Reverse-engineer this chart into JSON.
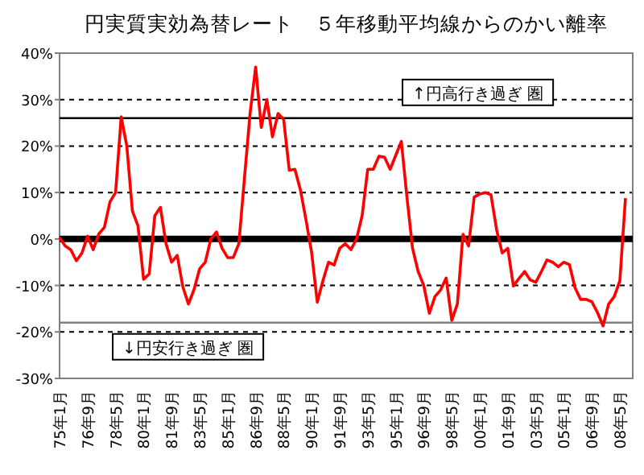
{
  "chart_data": {
    "type": "line",
    "title": "円実質実効為替レート　５年移動平均線からのかい離率",
    "categories": [
      "75年1月",
      null,
      null,
      null,
      null,
      "76年9月",
      null,
      null,
      null,
      null,
      "78年5月",
      null,
      null,
      null,
      null,
      "80年1月",
      null,
      null,
      null,
      null,
      "81年9月",
      null,
      null,
      null,
      null,
      "83年5月",
      null,
      null,
      null,
      null,
      "85年1月",
      null,
      null,
      null,
      null,
      "86年9月",
      null,
      null,
      null,
      null,
      "88年5月",
      null,
      null,
      null,
      null,
      "90年1月",
      null,
      null,
      null,
      null,
      "91年9月",
      null,
      null,
      null,
      null,
      "93年5月",
      null,
      null,
      null,
      null,
      "95年1月",
      null,
      null,
      null,
      null,
      "96年9月",
      null,
      null,
      null,
      null,
      "98年5月",
      null,
      null,
      null,
      null,
      "00年1月",
      null,
      null,
      null,
      null,
      "01年9月",
      null,
      null,
      null,
      null,
      "03年5月",
      null,
      null,
      null,
      null,
      "05年1月",
      null,
      null,
      null,
      null,
      "06年9月",
      null,
      null,
      null,
      null,
      "08年5月",
      null
    ],
    "series": [
      {
        "color": "#ff0000",
        "values": [
          0.3,
          -1.5,
          -2.3,
          -4.7,
          -3,
          0.6,
          -2.3,
          1.1,
          2.5,
          8,
          10,
          26.3,
          20,
          6,
          2.8,
          -8.7,
          -7.5,
          5,
          6.8,
          -1,
          -5,
          -3.5,
          -10.3,
          -14,
          -10.9,
          -6.4,
          -5,
          0,
          1.5,
          -2,
          -4,
          -4,
          -1,
          13.1,
          27,
          37,
          24,
          30,
          22,
          27,
          25.7,
          14.8,
          15,
          10.5,
          4,
          -3,
          -13.6,
          -9,
          -5,
          -5.6,
          -2,
          -1,
          -2.3,
          0,
          5,
          15,
          15,
          17.8,
          17.6,
          15,
          18,
          21,
          9,
          -2,
          -7,
          -10,
          -16,
          -12.4,
          -11,
          -8.4,
          -17.5,
          -14,
          1,
          -1.5,
          9,
          9.7,
          10,
          9.5,
          2,
          -3,
          -2,
          -10.1,
          -8.5,
          -7,
          -8.8,
          -9.3,
          -7,
          -4.5,
          -5,
          -6,
          -5,
          -5.5,
          -10.5,
          -13,
          -13,
          -13.5,
          -15.8,
          -18.7,
          -14,
          -12.4,
          -9,
          8.8
        ]
      }
    ],
    "ylim": [
      -30,
      40
    ],
    "yticks": [
      {
        "value": -30,
        "label": "-30%"
      },
      {
        "value": -20,
        "label": "-20%"
      },
      {
        "value": -10,
        "label": "-10%"
      },
      {
        "value": 0,
        "label": "0%"
      },
      {
        "value": 10,
        "label": "10%"
      },
      {
        "value": 20,
        "label": "20%"
      },
      {
        "value": 30,
        "label": "30%"
      },
      {
        "value": 40,
        "label": "40%"
      }
    ],
    "grid": "y",
    "ref_lines": [
      {
        "axis": "y",
        "value": 0,
        "color": "#000000"
      },
      {
        "axis": "y",
        "value": 26,
        "color": "#000000",
        "label": "↑円高行き過ぎ 圏"
      },
      {
        "axis": "y",
        "value": -18,
        "color": "#808080",
        "label": "↓円安行き過ぎ 圏"
      }
    ]
  }
}
